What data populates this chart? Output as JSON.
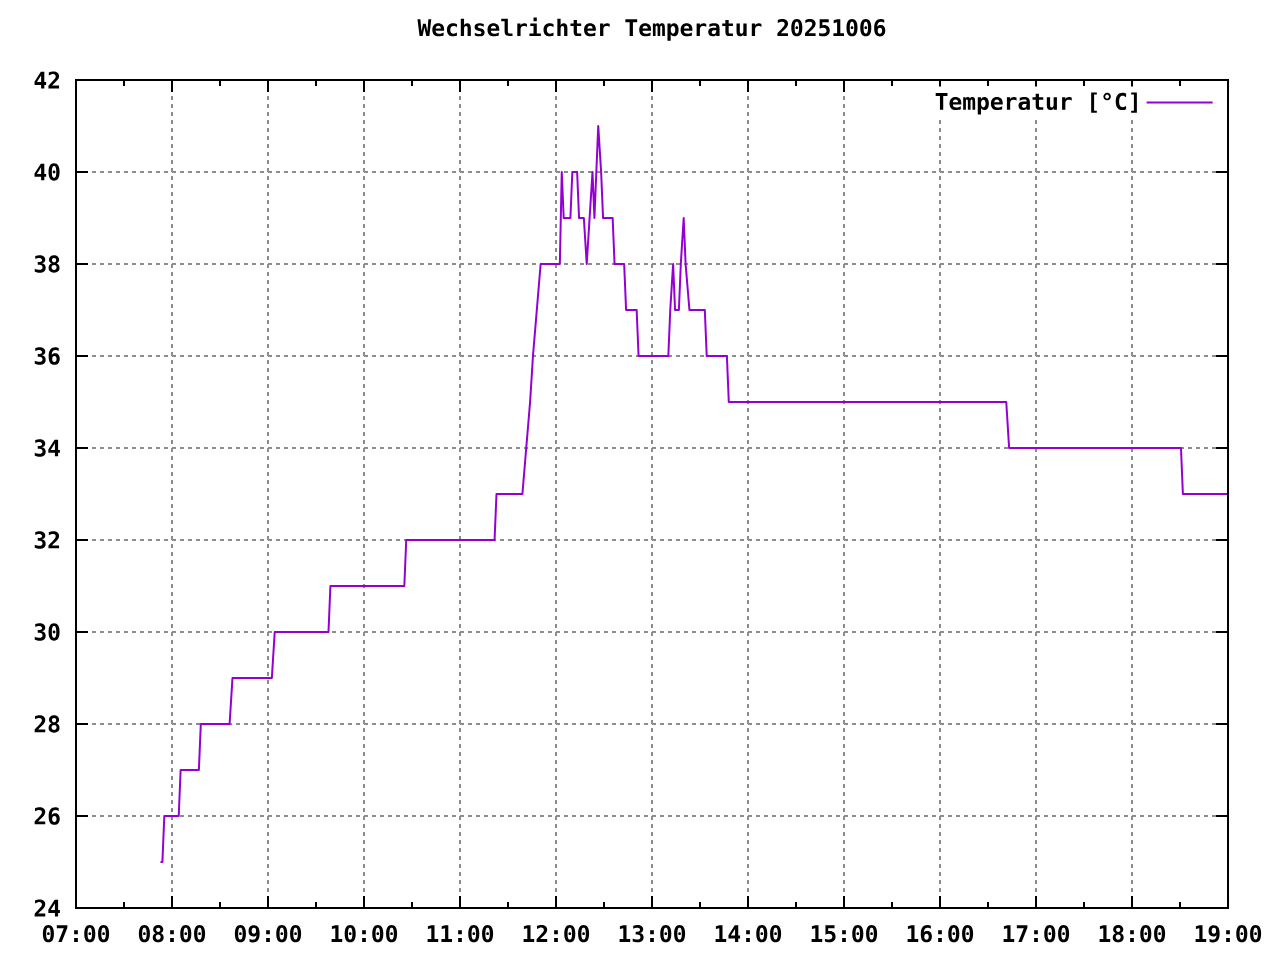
{
  "chart_data": {
    "type": "line",
    "title": "Wechselrichter Temperatur 20251006",
    "x": [
      7.88,
      7.9,
      7.92,
      8.07,
      8.09,
      8.28,
      8.3,
      8.6,
      8.63,
      9.04,
      9.07,
      9.63,
      9.65,
      10.42,
      10.44,
      11.36,
      11.38,
      11.65,
      11.69,
      11.73,
      11.76,
      11.8,
      11.84,
      12.04,
      12.06,
      12.08,
      12.15,
      12.17,
      12.22,
      12.24,
      12.29,
      12.32,
      12.38,
      12.4,
      12.42,
      12.44,
      12.47,
      12.49,
      12.59,
      12.61,
      12.71,
      12.73,
      12.84,
      12.86,
      13.17,
      13.19,
      13.22,
      13.24,
      13.28,
      13.3,
      13.33,
      13.35,
      13.39,
      13.55,
      13.57,
      13.78,
      13.8,
      16.69,
      16.72,
      18.51,
      18.53,
      18.99
    ],
    "series": [
      {
        "name": "Temperatur [°C]",
        "color": "#9400d3",
        "values": [
          25,
          25,
          26,
          26,
          27,
          27,
          28,
          28,
          29,
          29,
          30,
          30,
          31,
          31,
          32,
          32,
          33,
          33,
          34,
          35,
          36,
          37,
          38,
          38,
          40,
          39,
          39,
          40,
          40,
          39,
          39,
          38,
          40,
          39,
          40,
          41,
          40,
          39,
          39,
          38,
          38,
          37,
          37,
          36,
          36,
          37,
          38,
          37,
          37,
          38,
          39,
          38,
          37,
          37,
          36,
          36,
          35,
          35,
          34,
          34,
          33,
          33
        ]
      }
    ],
    "xlim": [
      7,
      19
    ],
    "xticks": [
      {
        "value": 7,
        "label": "07:00"
      },
      {
        "value": 7.5,
        "label": null
      },
      {
        "value": 8,
        "label": "08:00"
      },
      {
        "value": 8.5,
        "label": null
      },
      {
        "value": 9,
        "label": "09:00"
      },
      {
        "value": 9.5,
        "label": null
      },
      {
        "value": 10,
        "label": "10:00"
      },
      {
        "value": 10.5,
        "label": null
      },
      {
        "value": 11,
        "label": "11:00"
      },
      {
        "value": 11.5,
        "label": null
      },
      {
        "value": 12,
        "label": "12:00"
      },
      {
        "value": 12.5,
        "label": null
      },
      {
        "value": 13,
        "label": "13:00"
      },
      {
        "value": 13.5,
        "label": null
      },
      {
        "value": 14,
        "label": "14:00"
      },
      {
        "value": 14.5,
        "label": null
      },
      {
        "value": 15,
        "label": "15:00"
      },
      {
        "value": 15.5,
        "label": null
      },
      {
        "value": 16,
        "label": "16:00"
      },
      {
        "value": 16.5,
        "label": null
      },
      {
        "value": 17,
        "label": "17:00"
      },
      {
        "value": 17.5,
        "label": null
      },
      {
        "value": 18,
        "label": "18:00"
      },
      {
        "value": 18.5,
        "label": null
      },
      {
        "value": 19,
        "label": "19:00"
      }
    ],
    "ylim": [
      24,
      42
    ],
    "yticks": [
      24,
      26,
      28,
      30,
      32,
      34,
      36,
      38,
      40,
      42
    ],
    "grid": true,
    "legend": "top right",
    "line_style": "solid"
  }
}
